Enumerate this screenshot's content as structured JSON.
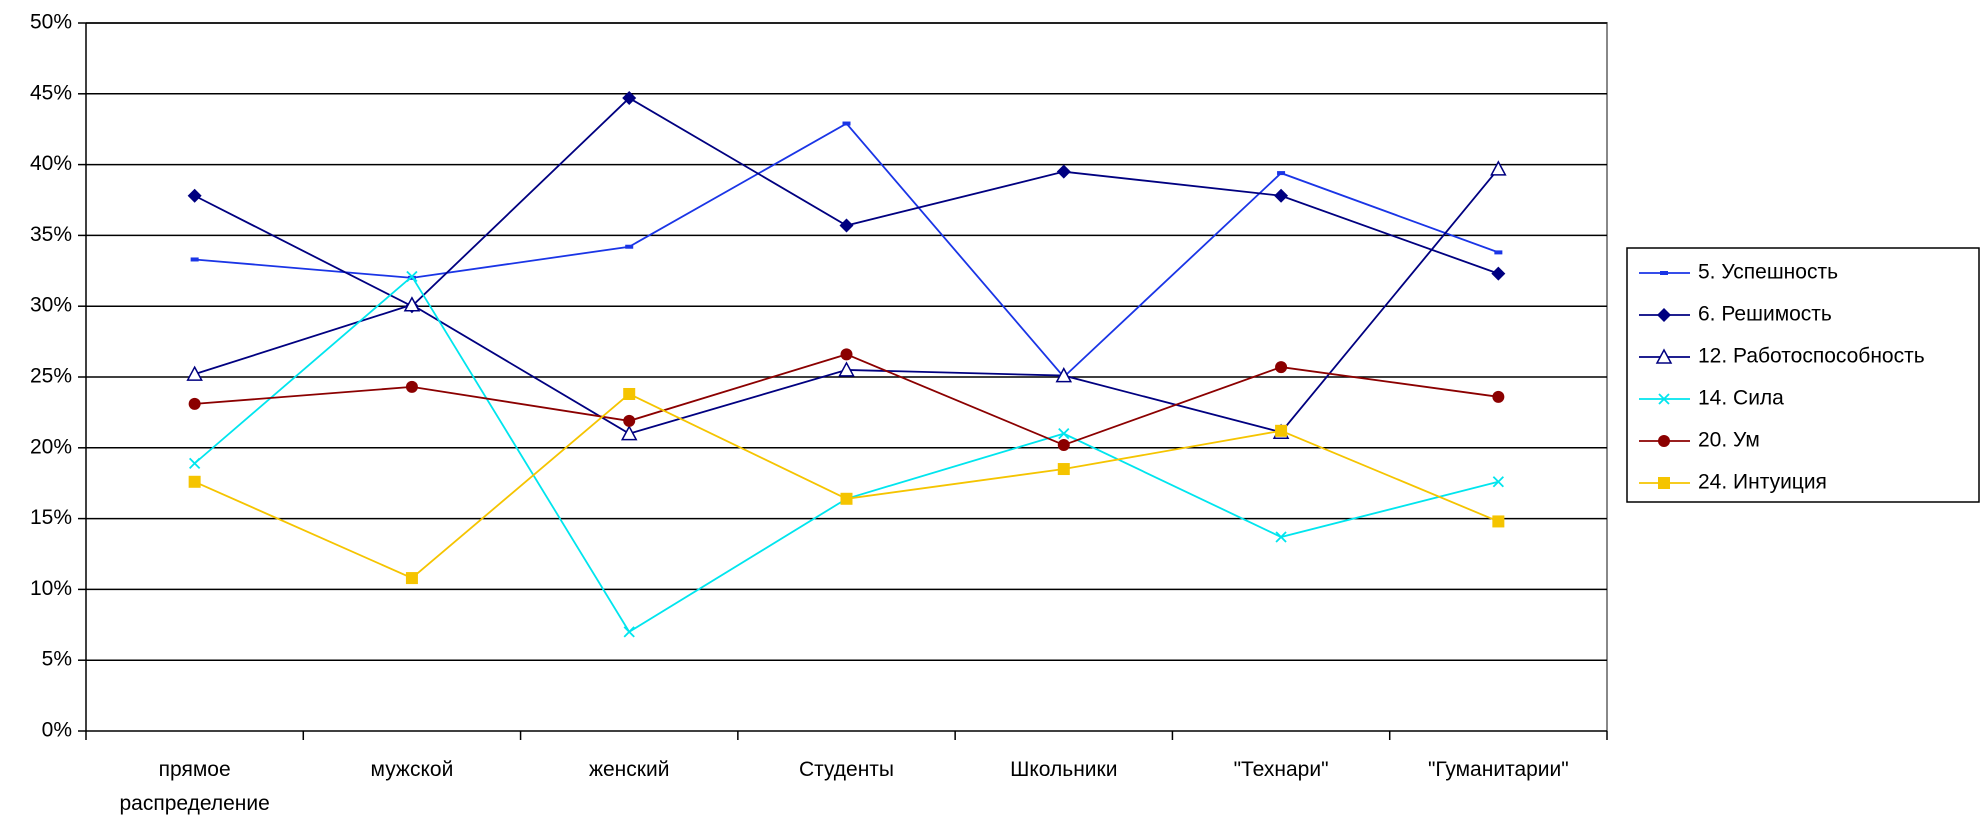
{
  "chart_data": {
    "type": "line",
    "categories": [
      "прямое распределение",
      "мужской",
      "женский",
      "Студенты",
      "Школьники",
      "\"Технари\"",
      "\"Гуманитарии\""
    ],
    "series": [
      {
        "name": "5. Успешность",
        "color": "#1a35e6",
        "marker": "dash",
        "values": [
          33.3,
          32.0,
          34.2,
          42.9,
          25.0,
          39.4,
          33.8
        ]
      },
      {
        "name": "6. Решимость",
        "color": "#000080",
        "marker": "diamond",
        "values": [
          37.8,
          30.0,
          44.7,
          35.7,
          39.5,
          37.8,
          32.3
        ]
      },
      {
        "name": "12. Работоспособность",
        "color": "#000080",
        "marker": "triangle",
        "values": [
          25.2,
          30.1,
          21.0,
          25.5,
          25.1,
          21.1,
          39.7
        ]
      },
      {
        "name": "14. Сила",
        "color": "#00e5ee",
        "marker": "x",
        "values": [
          18.9,
          32.1,
          7.0,
          16.4,
          21.0,
          13.7,
          17.6
        ]
      },
      {
        "name": "20. Ум",
        "color": "#8b0000",
        "marker": "circle",
        "values": [
          23.1,
          24.3,
          21.9,
          26.6,
          20.2,
          25.7,
          23.6
        ]
      },
      {
        "name": "24. Интуиция",
        "color": "#f5c400",
        "marker": "square",
        "values": [
          17.6,
          10.8,
          23.8,
          16.4,
          18.5,
          21.2,
          14.8
        ]
      }
    ],
    "ylim": [
      0,
      50
    ],
    "yticks": [
      {
        "value": 0,
        "label": "0%"
      },
      {
        "value": 5,
        "label": "5%"
      },
      {
        "value": 10,
        "label": "10%"
      },
      {
        "value": 15,
        "label": "15%"
      },
      {
        "value": 20,
        "label": "20%"
      },
      {
        "value": 25,
        "label": "25%"
      },
      {
        "value": 30,
        "label": "30%"
      },
      {
        "value": 35,
        "label": "35%"
      },
      {
        "value": 40,
        "label": "40%"
      },
      {
        "value": 45,
        "label": "45%"
      },
      {
        "value": 50,
        "label": "50%"
      }
    ],
    "grid": true,
    "legend": "right"
  }
}
